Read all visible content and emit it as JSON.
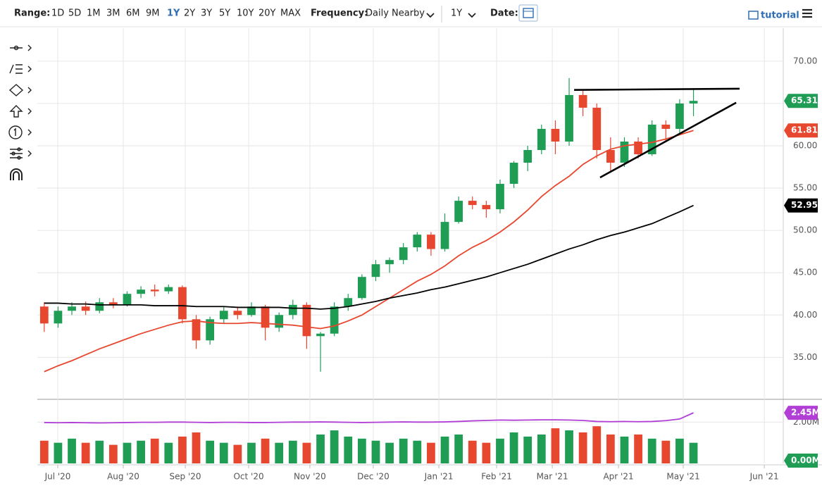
{
  "toolbar": {
    "range_label": "Range:",
    "ranges": [
      "1D",
      "5D",
      "1M",
      "3M",
      "6M",
      "9M",
      "1Y",
      "2Y",
      "3Y",
      "5Y",
      "10Y",
      "20Y",
      "MAX"
    ],
    "active_range": 6,
    "frequency_label": "Frequency:",
    "frequency": "Daily Nearby",
    "period": "1Y",
    "date_label": "Date:",
    "tutorial": "tutorial"
  },
  "chart_data": [
    {
      "type": "candlestick",
      "categories": [
        null,
        null,
        null,
        null,
        null,
        null,
        null,
        null,
        null,
        null,
        null,
        null,
        null,
        null,
        null,
        null,
        null,
        null,
        null,
        null,
        null,
        null,
        null,
        null,
        null,
        null,
        null,
        null,
        null,
        null,
        null,
        null,
        null,
        null,
        null,
        null,
        null,
        null,
        null,
        null,
        null,
        null,
        null,
        null,
        null,
        null,
        null,
        null
      ],
      "open": [
        41,
        39,
        40.5,
        41,
        40.5,
        41.5,
        41.2,
        42.5,
        43,
        42.8,
        43.3,
        39.5,
        37,
        39.5,
        40.5,
        40,
        41,
        38.5,
        40,
        41.2,
        37.5,
        37.8,
        41,
        42,
        44.5,
        46,
        46.5,
        48,
        49.5,
        47.8,
        51,
        53.5,
        53,
        52.5,
        55.5,
        58,
        59.5,
        62,
        60.5,
        66,
        64.5,
        59.5,
        58,
        60.5,
        59,
        62.5,
        62,
        65
      ],
      "high": [
        41.5,
        41,
        41.5,
        41.6,
        42,
        42,
        42.8,
        43.4,
        43.6,
        43.6,
        43.5,
        40,
        39.8,
        41,
        41,
        41.5,
        41.2,
        40.3,
        41.8,
        41.5,
        38,
        41.5,
        42.5,
        44.8,
        46.5,
        46.8,
        48.5,
        49.8,
        49.8,
        52,
        54,
        54,
        53.5,
        56,
        58.2,
        60,
        62.5,
        63,
        68,
        66.5,
        65,
        61,
        61,
        61,
        63,
        63,
        65.5,
        66.8
      ],
      "low": [
        38,
        38.5,
        40,
        40,
        40.2,
        40.8,
        41,
        42,
        42.2,
        42.5,
        39,
        36,
        36.5,
        39,
        39.5,
        39.8,
        37,
        38,
        39.5,
        36,
        33.3,
        37.5,
        40.5,
        41.8,
        44,
        45,
        46,
        47.5,
        47,
        47.5,
        50.8,
        52.5,
        51.5,
        52,
        55,
        57,
        59,
        59,
        60,
        63.5,
        58.5,
        57,
        57.5,
        58.5,
        58.8,
        60.5,
        61.5,
        63.5
      ],
      "close": [
        39,
        40.5,
        41,
        40.5,
        41.5,
        41.2,
        42.5,
        43,
        42.8,
        43.3,
        39.5,
        37,
        39.5,
        40.5,
        40,
        41,
        38.5,
        40,
        41.2,
        37.5,
        37.8,
        41,
        42,
        44.5,
        46,
        46.5,
        48,
        49.5,
        47.8,
        51,
        53.5,
        53,
        52.5,
        55.5,
        58,
        59.5,
        62,
        60.5,
        66,
        64.5,
        59.5,
        58,
        60.5,
        59,
        62.5,
        62,
        65,
        65.31
      ],
      "up_color": "#1f9d55",
      "down_color": "#e8472f",
      "xlim": [
        -0.5,
        53.5
      ],
      "ylim": [
        30.2,
        73.9
      ],
      "xticks": [
        {
          "value": 0.98,
          "label": "Jul '20"
        },
        {
          "value": 5.72,
          "label": "Aug '20"
        },
        {
          "value": 10.21,
          "label": "Sep '20"
        },
        {
          "value": 14.8,
          "label": "Oct '20"
        },
        {
          "value": 19.23,
          "label": "Nov '20"
        },
        {
          "value": 23.82,
          "label": "Dec '20"
        },
        {
          "value": 28.57,
          "label": "Jan '21"
        },
        {
          "value": 32.75,
          "label": "Feb '21"
        },
        {
          "value": 36.78,
          "label": "Mar '21"
        },
        {
          "value": 41.57,
          "label": "Apr '21"
        },
        {
          "value": 46.26,
          "label": "May '21"
        },
        {
          "value": 52.13,
          "label": "Jun '21"
        }
      ],
      "yticks": [
        {
          "value": 35,
          "label": "35.00"
        },
        {
          "value": 40,
          "label": "40.00"
        },
        {
          "value": 45,
          "label": "45.00"
        },
        {
          "value": 50,
          "label": "50.00"
        },
        {
          "value": 55,
          "label": "55.00"
        },
        {
          "value": 60,
          "label": "60.00"
        },
        {
          "value": 65,
          "label": "65.00"
        },
        {
          "value": 70,
          "label": "70.00"
        }
      ],
      "grid": true,
      "moving_averages": [
        {
          "color": "#e8472f",
          "values": [
            33.3,
            34,
            34.6,
            35.3,
            36,
            36.6,
            37.2,
            37.8,
            38.3,
            38.8,
            39.2,
            39.3,
            39.1,
            39,
            39,
            39.1,
            39,
            38.9,
            38.8,
            38.6,
            38.4,
            38.7,
            39.3,
            40,
            41,
            42,
            43,
            44,
            44.8,
            45.8,
            47,
            48,
            48.8,
            49.8,
            51,
            52.4,
            54,
            55.3,
            56.4,
            57.8,
            58.8,
            59.6,
            60,
            60.2,
            60.4,
            60.8,
            61.3,
            61.81
          ]
        },
        {
          "color": "#000000",
          "values": [
            41.4,
            41.4,
            41.3,
            41.3,
            41.2,
            41.2,
            41.2,
            41.2,
            41.1,
            41.1,
            41.1,
            41,
            41,
            41,
            40.9,
            40.9,
            40.9,
            40.9,
            40.8,
            40.8,
            40.7,
            40.8,
            41,
            41.3,
            41.6,
            42,
            42.3,
            42.6,
            43,
            43.3,
            43.7,
            44.1,
            44.5,
            45,
            45.5,
            46,
            46.6,
            47.2,
            47.8,
            48.3,
            48.9,
            49.4,
            49.8,
            50.3,
            50.8,
            51.5,
            52.2,
            52.95
          ]
        }
      ],
      "trendlines": [
        {
          "color": "#000000",
          "x": [
            38.36,
            50.34
          ],
          "y": [
            66.6,
            66.75
          ]
        },
        {
          "color": "#000000",
          "x": [
            40.24,
            50.09
          ],
          "y": [
            56.25,
            65.1
          ]
        }
      ]
    },
    {
      "type": "bar",
      "values": [
        1100000,
        1000000,
        1200000,
        1000000,
        1100000,
        900000,
        1000000,
        1100000,
        1200000,
        1000000,
        1300000,
        1500000,
        1100000,
        1000000,
        900000,
        1000000,
        1200000,
        1000000,
        1100000,
        1000000,
        1400000,
        1600000,
        1300000,
        1200000,
        1100000,
        1000000,
        1200000,
        1100000,
        1000000,
        1300000,
        1400000,
        1100000,
        1000000,
        1200000,
        1500000,
        1300000,
        1400000,
        1700000,
        1600000,
        1500000,
        1800000,
        1400000,
        1300000,
        1400000,
        1200000,
        1100000,
        1200000,
        1000000
      ],
      "ylim": [
        0,
        3000000
      ],
      "yticks": [
        {
          "value": 2000000,
          "label": "2.00M"
        }
      ],
      "moving_average": {
        "color": "#b13fd6",
        "values": [
          1980000,
          1970000,
          1980000,
          1970000,
          1960000,
          1970000,
          1980000,
          1990000,
          1990000,
          2000000,
          2000000,
          1990000,
          1980000,
          1990000,
          1990000,
          1980000,
          1980000,
          1990000,
          2000000,
          2000000,
          2010000,
          2000000,
          1990000,
          1980000,
          1990000,
          2000000,
          2010000,
          2000000,
          2000000,
          2010000,
          2030000,
          2060000,
          2080000,
          2100000,
          2090000,
          2100000,
          2110000,
          2110000,
          2100000,
          2080000,
          2030000,
          2020000,
          2030000,
          2020000,
          2030000,
          2070000,
          2150000,
          2450000
        ],
        "last_label": {
          "value": 2450000,
          "label": "2.45M"
        }
      },
      "current_value": {
        "value": 0,
        "label": "0.00M",
        "color": "#1f9d55"
      }
    }
  ]
}
